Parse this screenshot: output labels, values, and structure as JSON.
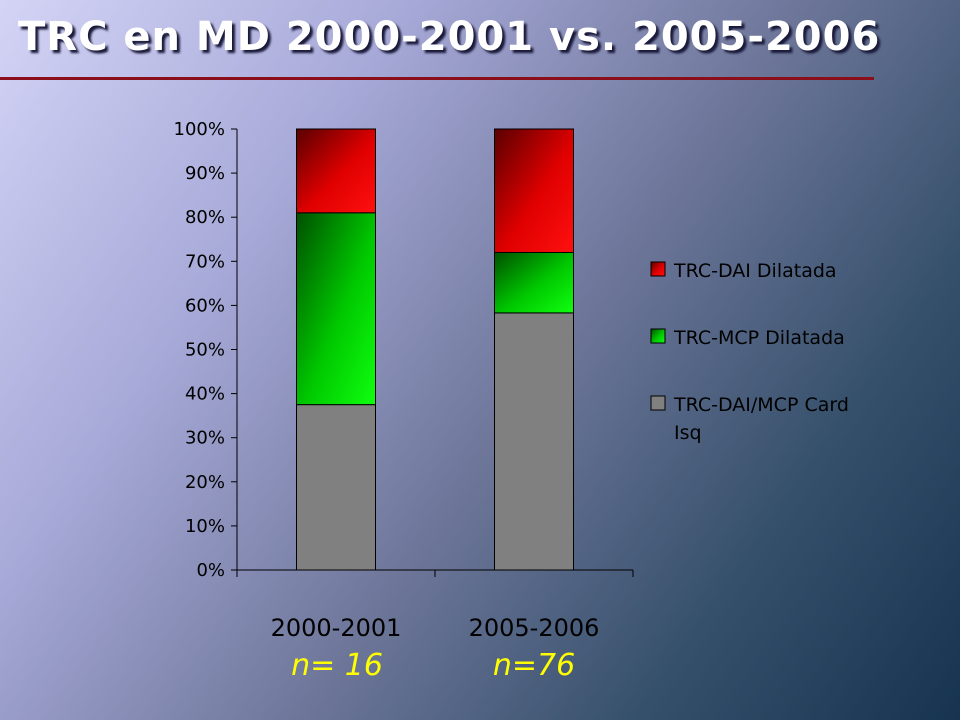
{
  "title": "TRC en MD 2000-2001 vs. 2005-2006",
  "sample_sizes": [
    "n= 16",
    "n=76"
  ],
  "colors": {
    "title_rule": "#8b0f1a",
    "sample_text": "#ffff00"
  },
  "chart_data": {
    "type": "bar",
    "stacked": true,
    "percent_axis": true,
    "categories": [
      "2000-2001",
      "2005-2006"
    ],
    "series": [
      {
        "name": "TRC-DAI/MCP Card Isq",
        "values": [
          37.5,
          58.3
        ],
        "color": "#808080"
      },
      {
        "name": "TRC-MCP Dilatada",
        "values": [
          43.5,
          13.7
        ],
        "color": "#00d800"
      },
      {
        "name": "TRC-DAI Dilatada",
        "values": [
          19.0,
          28.0
        ],
        "color": "#e00000"
      }
    ],
    "legend_order": [
      "TRC-DAI Dilatada",
      "TRC-MCP Dilatada",
      "TRC-DAI/MCP Card Isq"
    ],
    "ytick_labels": [
      "0%",
      "10%",
      "20%",
      "30%",
      "40%",
      "50%",
      "60%",
      "70%",
      "80%",
      "90%",
      "100%"
    ],
    "ylim": [
      0,
      100
    ],
    "grid": false,
    "legend_position": "right"
  }
}
